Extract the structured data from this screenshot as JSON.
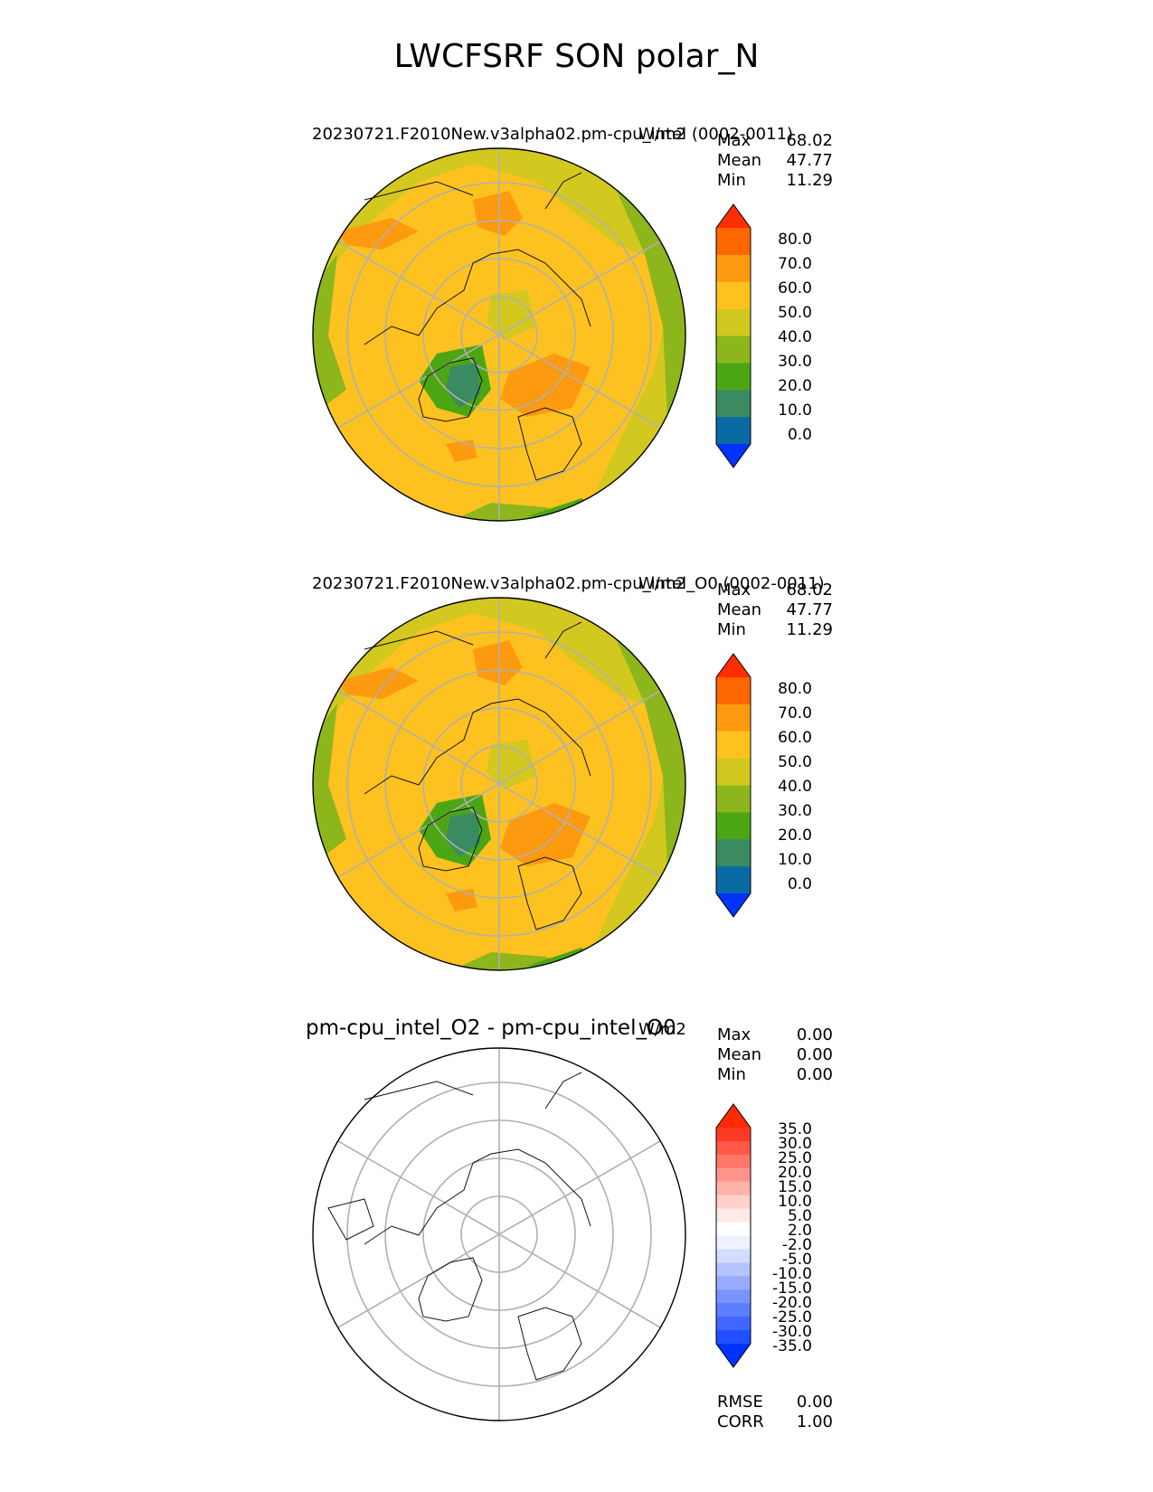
{
  "figure_title": "LWCFSRF SON polar_N",
  "panels": [
    {
      "title": "20230721.F2010New.v3alpha02.pm-cpu_intel (0002-0011)",
      "units": "W/m2",
      "stats": {
        "max_label": "Max",
        "max": "68.02",
        "mean_label": "Mean",
        "mean": "47.77",
        "min_label": "Min",
        "min": "11.29"
      },
      "colorbar_ticks": [
        "80.0",
        "70.0",
        "60.0",
        "50.0",
        "40.0",
        "30.0",
        "20.0",
        "10.0",
        "0.0"
      ]
    },
    {
      "title": "20230721.F2010New.v3alpha02.pm-cpu_intel_O0 (0002-0011)",
      "units": "W/m2",
      "stats": {
        "max_label": "Max",
        "max": "68.02",
        "mean_label": "Mean",
        "mean": "47.77",
        "min_label": "Min",
        "min": "11.29"
      },
      "colorbar_ticks": [
        "80.0",
        "70.0",
        "60.0",
        "50.0",
        "40.0",
        "30.0",
        "20.0",
        "10.0",
        "0.0"
      ]
    },
    {
      "title": "pm-cpu_intel_O2 - pm-cpu_intel_O0",
      "units": "W/m2",
      "stats": {
        "max_label": "Max",
        "max": "0.00",
        "mean_label": "Mean",
        "mean": "0.00",
        "min_label": "Min",
        "min": "0.00"
      },
      "colorbar_ticks": [
        "35.0",
        "30.0",
        "25.0",
        "20.0",
        "15.0",
        "10.0",
        "5.0",
        "2.0",
        "-2.0",
        "-5.0",
        "-10.0",
        "-15.0",
        "-20.0",
        "-25.0",
        "-30.0",
        "-35.0"
      ],
      "metrics": {
        "rmse_label": "RMSE",
        "rmse": "0.00",
        "corr_label": "CORR",
        "corr": "1.00"
      }
    }
  ],
  "colors": {
    "field_scale": [
      "#0033ff",
      "#0a6aa3",
      "#3a8a62",
      "#4ca614",
      "#8db61c",
      "#d2c81f",
      "#fdc220",
      "#fd9a10",
      "#fd6600",
      "#ff2e00"
    ],
    "diff_scale": [
      "#0033ff",
      "#2050ff",
      "#4066ff",
      "#5c7dff",
      "#7a94ff",
      "#98acff",
      "#b6c4ff",
      "#d4dcff",
      "#eef1ff",
      "#ffffff",
      "#ffeaea",
      "#ffd0cc",
      "#ffb3ab",
      "#ff958a",
      "#ff7768",
      "#ff5846",
      "#ff3a24",
      "#ff2a00"
    ]
  }
}
